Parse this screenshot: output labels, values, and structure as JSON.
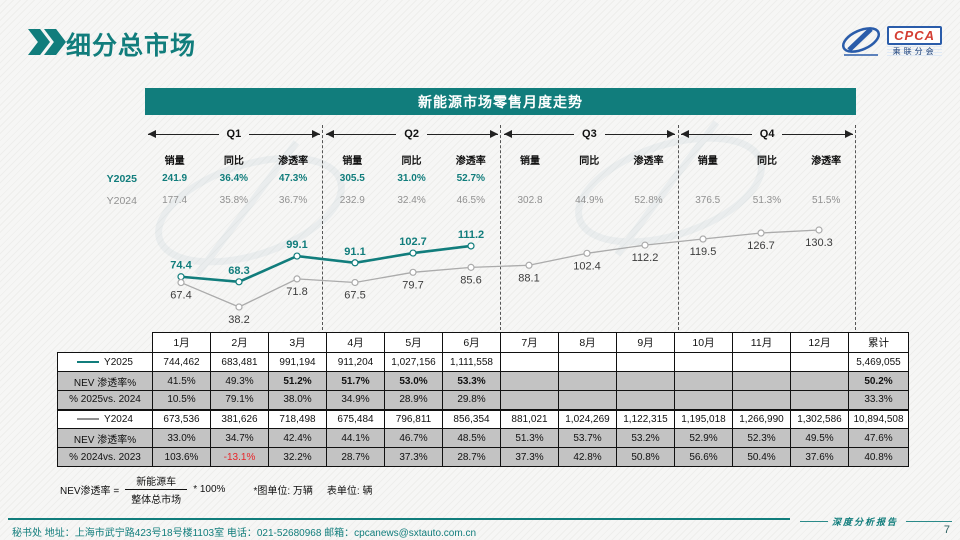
{
  "page": {
    "title": "细分总市场",
    "page_number": "7"
  },
  "logo": {
    "name": "CPCA",
    "subtitle": "乘联分会"
  },
  "panel": {
    "title": "新能源市场零售月度走势",
    "quarters": [
      "Q1",
      "Q2",
      "Q3",
      "Q4"
    ],
    "stat_headers": [
      "销量",
      "同比",
      "渗透率"
    ],
    "y2025_label": "Y2025",
    "y2024_label": "Y2024",
    "y2025_stats": [
      "241.9",
      "36.4%",
      "47.3%",
      "305.5",
      "31.0%",
      "52.7%",
      "",
      "",
      "",
      "",
      "",
      ""
    ],
    "y2024_stats": [
      "177.4",
      "35.8%",
      "36.7%",
      "232.9",
      "32.4%",
      "46.5%",
      "302.8",
      "44.9%",
      "52.8%",
      "376.5",
      "51.3%",
      "51.5%"
    ]
  },
  "chart_data": {
    "type": "line",
    "title": "新能源市场零售月度走势",
    "categories": [
      "1月",
      "2月",
      "3月",
      "4月",
      "5月",
      "6月",
      "7月",
      "8月",
      "9月",
      "10月",
      "11月",
      "12月"
    ],
    "unit": "万辆",
    "ylim": [
      30,
      140
    ],
    "grid": false,
    "legend_position": "table-left",
    "series": [
      {
        "name": "Y2025",
        "color": "#117d7c",
        "values": [
          74.4,
          68.3,
          99.1,
          91.1,
          102.7,
          111.2
        ]
      },
      {
        "name": "Y2024",
        "color": "#ababab",
        "values": [
          67.4,
          38.2,
          71.8,
          67.5,
          79.7,
          85.6,
          88.1,
          102.4,
          112.2,
          119.5,
          126.7,
          130.3
        ]
      }
    ]
  },
  "table": {
    "col_headers": [
      "1月",
      "2月",
      "3月",
      "4月",
      "5月",
      "6月",
      "7月",
      "8月",
      "9月",
      "10月",
      "11月",
      "12月",
      "累计"
    ],
    "rows": [
      {
        "label": "Y2025",
        "legend_color": "#117d7c",
        "shade": "white",
        "values": [
          "744,462",
          "683,481",
          "991,194",
          "911,204",
          "1,027,156",
          "1,111,558",
          "",
          "",
          "",
          "",
          "",
          "",
          "5,469,055"
        ]
      },
      {
        "label": "NEV 渗透率%",
        "shade": "gray",
        "bold": [
          2,
          3,
          4,
          5,
          12
        ],
        "values": [
          "41.5%",
          "49.3%",
          "51.2%",
          "51.7%",
          "53.0%",
          "53.3%",
          "",
          "",
          "",
          "",
          "",
          "",
          "50.2%"
        ]
      },
      {
        "label": "% 2025vs. 2024",
        "shade": "gray",
        "values": [
          "10.5%",
          "79.1%",
          "38.0%",
          "34.9%",
          "28.9%",
          "29.8%",
          "",
          "",
          "",
          "",
          "",
          "",
          "33.3%"
        ]
      },
      {
        "label": "Y2024",
        "legend_color": "#8f8f8f",
        "shade": "white",
        "thick_top": true,
        "values": [
          "673,536",
          "381,626",
          "718,498",
          "675,484",
          "796,811",
          "856,354",
          "881,021",
          "1,024,269",
          "1,122,315",
          "1,195,018",
          "1,266,990",
          "1,302,586",
          "10,894,508"
        ]
      },
      {
        "label": "NEV 渗透率%",
        "shade": "gray",
        "values": [
          "33.0%",
          "34.7%",
          "42.4%",
          "44.1%",
          "46.7%",
          "48.5%",
          "51.3%",
          "53.7%",
          "53.2%",
          "52.9%",
          "52.3%",
          "49.5%",
          "47.6%"
        ]
      },
      {
        "label": "% 2024vs. 2023",
        "shade": "gray",
        "red": [
          1
        ],
        "values": [
          "103.6%",
          "-13.1%",
          "32.2%",
          "28.7%",
          "37.3%",
          "28.7%",
          "37.3%",
          "42.8%",
          "50.8%",
          "56.6%",
          "50.4%",
          "37.6%",
          "40.8%"
        ]
      }
    ]
  },
  "footnote": {
    "lhs": "NEV渗透率 =",
    "numerator": "新能源车",
    "denominator": "整体总市场",
    "multiplier": "* 100%",
    "unit_note_chart": "*图单位: 万辆",
    "unit_note_table": "表单位: 辆"
  },
  "footer": {
    "contact": "秘书处  地址：上海市武宁路423号18号楼1103室  电话：021-52680968   邮箱：cpcanews@sxtauto.com.cn",
    "report_label": "深度分析报告",
    "page": "7"
  },
  "colors": {
    "accent": "#117d7c",
    "gray_series": "#ababab",
    "table_gray": "#c3c3c3",
    "negative_red": "#e8262a"
  }
}
